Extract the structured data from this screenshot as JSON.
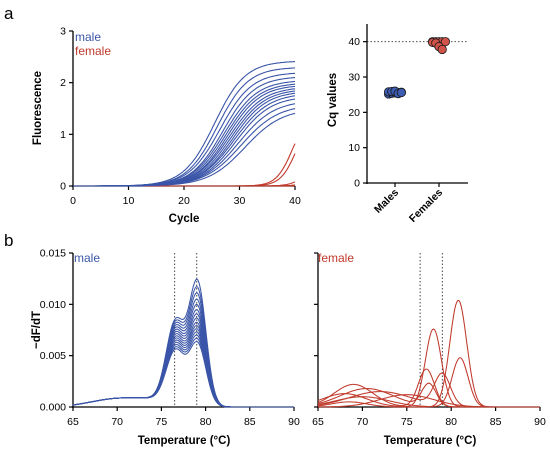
{
  "panel_labels": {
    "a": "a",
    "b": "b"
  },
  "colors": {
    "male": "#3a55a8",
    "female": "#c0392b",
    "male_fill": "#3d5bb0",
    "female_fill": "#d0544a",
    "axis": "#000000"
  },
  "chart_data": [
    {
      "type": "line",
      "panel": "a-amplification",
      "xlabel": "Cycle",
      "ylabel": "Fluorescence",
      "xlim": [
        0,
        40
      ],
      "ylim": [
        0,
        3
      ],
      "xticks": [
        "0",
        "10",
        "20",
        "30",
        "40"
      ],
      "yticks": [
        "0",
        "1",
        "2",
        "3"
      ],
      "legend": [
        "male",
        "female"
      ],
      "legend_position": "top-left",
      "male_curves": [
        {
          "ct": 25.5,
          "plateau": 2.42,
          "k": 0.36
        },
        {
          "ct": 26.0,
          "plateau": 2.3,
          "k": 0.36
        },
        {
          "ct": 26.5,
          "plateau": 2.2,
          "k": 0.35
        },
        {
          "ct": 27.0,
          "plateau": 2.12,
          "k": 0.35
        },
        {
          "ct": 27.3,
          "plateau": 2.05,
          "k": 0.34
        },
        {
          "ct": 27.6,
          "plateau": 2.0,
          "k": 0.34
        },
        {
          "ct": 27.9,
          "plateau": 1.96,
          "k": 0.34
        },
        {
          "ct": 28.2,
          "plateau": 1.92,
          "k": 0.33
        },
        {
          "ct": 28.5,
          "plateau": 1.88,
          "k": 0.33
        },
        {
          "ct": 28.8,
          "plateau": 1.84,
          "k": 0.33
        },
        {
          "ct": 29.1,
          "plateau": 1.8,
          "k": 0.32
        },
        {
          "ct": 29.4,
          "plateau": 1.74,
          "k": 0.32
        },
        {
          "ct": 29.8,
          "plateau": 1.66,
          "k": 0.31
        },
        {
          "ct": 30.3,
          "plateau": 1.58,
          "k": 0.3
        },
        {
          "ct": 31.0,
          "plateau": 1.5,
          "k": 0.3
        }
      ],
      "female_curves": [
        {
          "ct": 39.5,
          "plateau": 1.4,
          "k": 0.7
        },
        {
          "ct": 40.3,
          "plateau": 1.4,
          "k": 0.7
        },
        {
          "ct": 44.0,
          "plateau": 1.4,
          "k": 0.7
        },
        {
          "ct": 46.0,
          "plateau": 1.4,
          "k": 0.7
        },
        {
          "ct": 48.0,
          "plateau": 1.4,
          "k": 0.7
        }
      ]
    },
    {
      "type": "scatter",
      "panel": "a-cq",
      "ylabel": "Cq values",
      "categories": [
        "Males",
        "Females"
      ],
      "ylim": [
        0,
        45
      ],
      "yticks": [
        "0",
        "10",
        "20",
        "30",
        "40"
      ],
      "reference_line": 40,
      "series": [
        {
          "name": "Males",
          "values": [
            25.2,
            25.4,
            25.5,
            25.6,
            25.7,
            25.8,
            25.9,
            26.0,
            25.3,
            25.6
          ]
        },
        {
          "name": "Females",
          "values": [
            40,
            40,
            40,
            40,
            40,
            39.8,
            39.6,
            38.6,
            37.8
          ]
        }
      ]
    },
    {
      "type": "line",
      "panel": "b-melt-male",
      "title": "male",
      "xlabel": "Temperature (°C)",
      "ylabel": "−dF/dT",
      "xlim": [
        65,
        90
      ],
      "ylim": [
        0,
        0.015
      ],
      "xticks": [
        "65",
        "70",
        "75",
        "80",
        "85",
        "90"
      ],
      "yticks": [
        "0.000",
        "0.005",
        "0.010",
        "0.015"
      ],
      "reference_lines": [
        76.5,
        79
      ],
      "curves": [
        {
          "p1": 0.008,
          "p2": 0.0119
        },
        {
          "p1": 0.0078,
          "p2": 0.0112
        },
        {
          "p1": 0.0076,
          "p2": 0.0106
        },
        {
          "p1": 0.0074,
          "p2": 0.01
        },
        {
          "p1": 0.0072,
          "p2": 0.0095
        },
        {
          "p1": 0.007,
          "p2": 0.009
        },
        {
          "p1": 0.0068,
          "p2": 0.0086
        },
        {
          "p1": 0.0066,
          "p2": 0.0082
        },
        {
          "p1": 0.0064,
          "p2": 0.0078
        },
        {
          "p1": 0.0062,
          "p2": 0.0075
        },
        {
          "p1": 0.006,
          "p2": 0.0072
        },
        {
          "p1": 0.0058,
          "p2": 0.0069
        },
        {
          "p1": 0.0056,
          "p2": 0.0066
        },
        {
          "p1": 0.0054,
          "p2": 0.0063
        },
        {
          "p1": 0.0052,
          "p2": 0.006
        }
      ]
    },
    {
      "type": "line",
      "panel": "b-melt-female",
      "title": "female",
      "xlabel": "Temperature (°C)",
      "xlim": [
        65,
        90
      ],
      "ylim": [
        0,
        0.015
      ],
      "xticks": [
        "65",
        "70",
        "75",
        "80",
        "85",
        "90"
      ],
      "reference_lines": [
        76.5,
        79
      ],
      "curves": [
        {
          "peaks": [
            [
              80.8,
              0.0104,
              0.95
            ],
            [
              68.5,
              0.0005,
              2.0
            ]
          ]
        },
        {
          "peaks": [
            [
              78.0,
              0.0076,
              0.9
            ],
            [
              68.0,
              0.0013,
              2.5
            ]
          ]
        },
        {
          "peaks": [
            [
              81.0,
              0.0048,
              0.9
            ],
            [
              70.0,
              0.001,
              3.0
            ]
          ]
        },
        {
          "peaks": [
            [
              77.2,
              0.0037,
              0.9
            ],
            [
              69.0,
              0.0022,
              2.2
            ]
          ]
        },
        {
          "peaks": [
            [
              79.0,
              0.0031,
              0.9
            ],
            [
              72.0,
              0.0015,
              3.5
            ]
          ]
        },
        {
          "peaks": [
            [
              77.5,
              0.0022,
              0.8
            ],
            [
              70.5,
              0.0018,
              3.0
            ]
          ]
        },
        {
          "peaks": [
            [
              75.0,
              0.0012,
              3.0
            ]
          ]
        }
      ]
    }
  ]
}
